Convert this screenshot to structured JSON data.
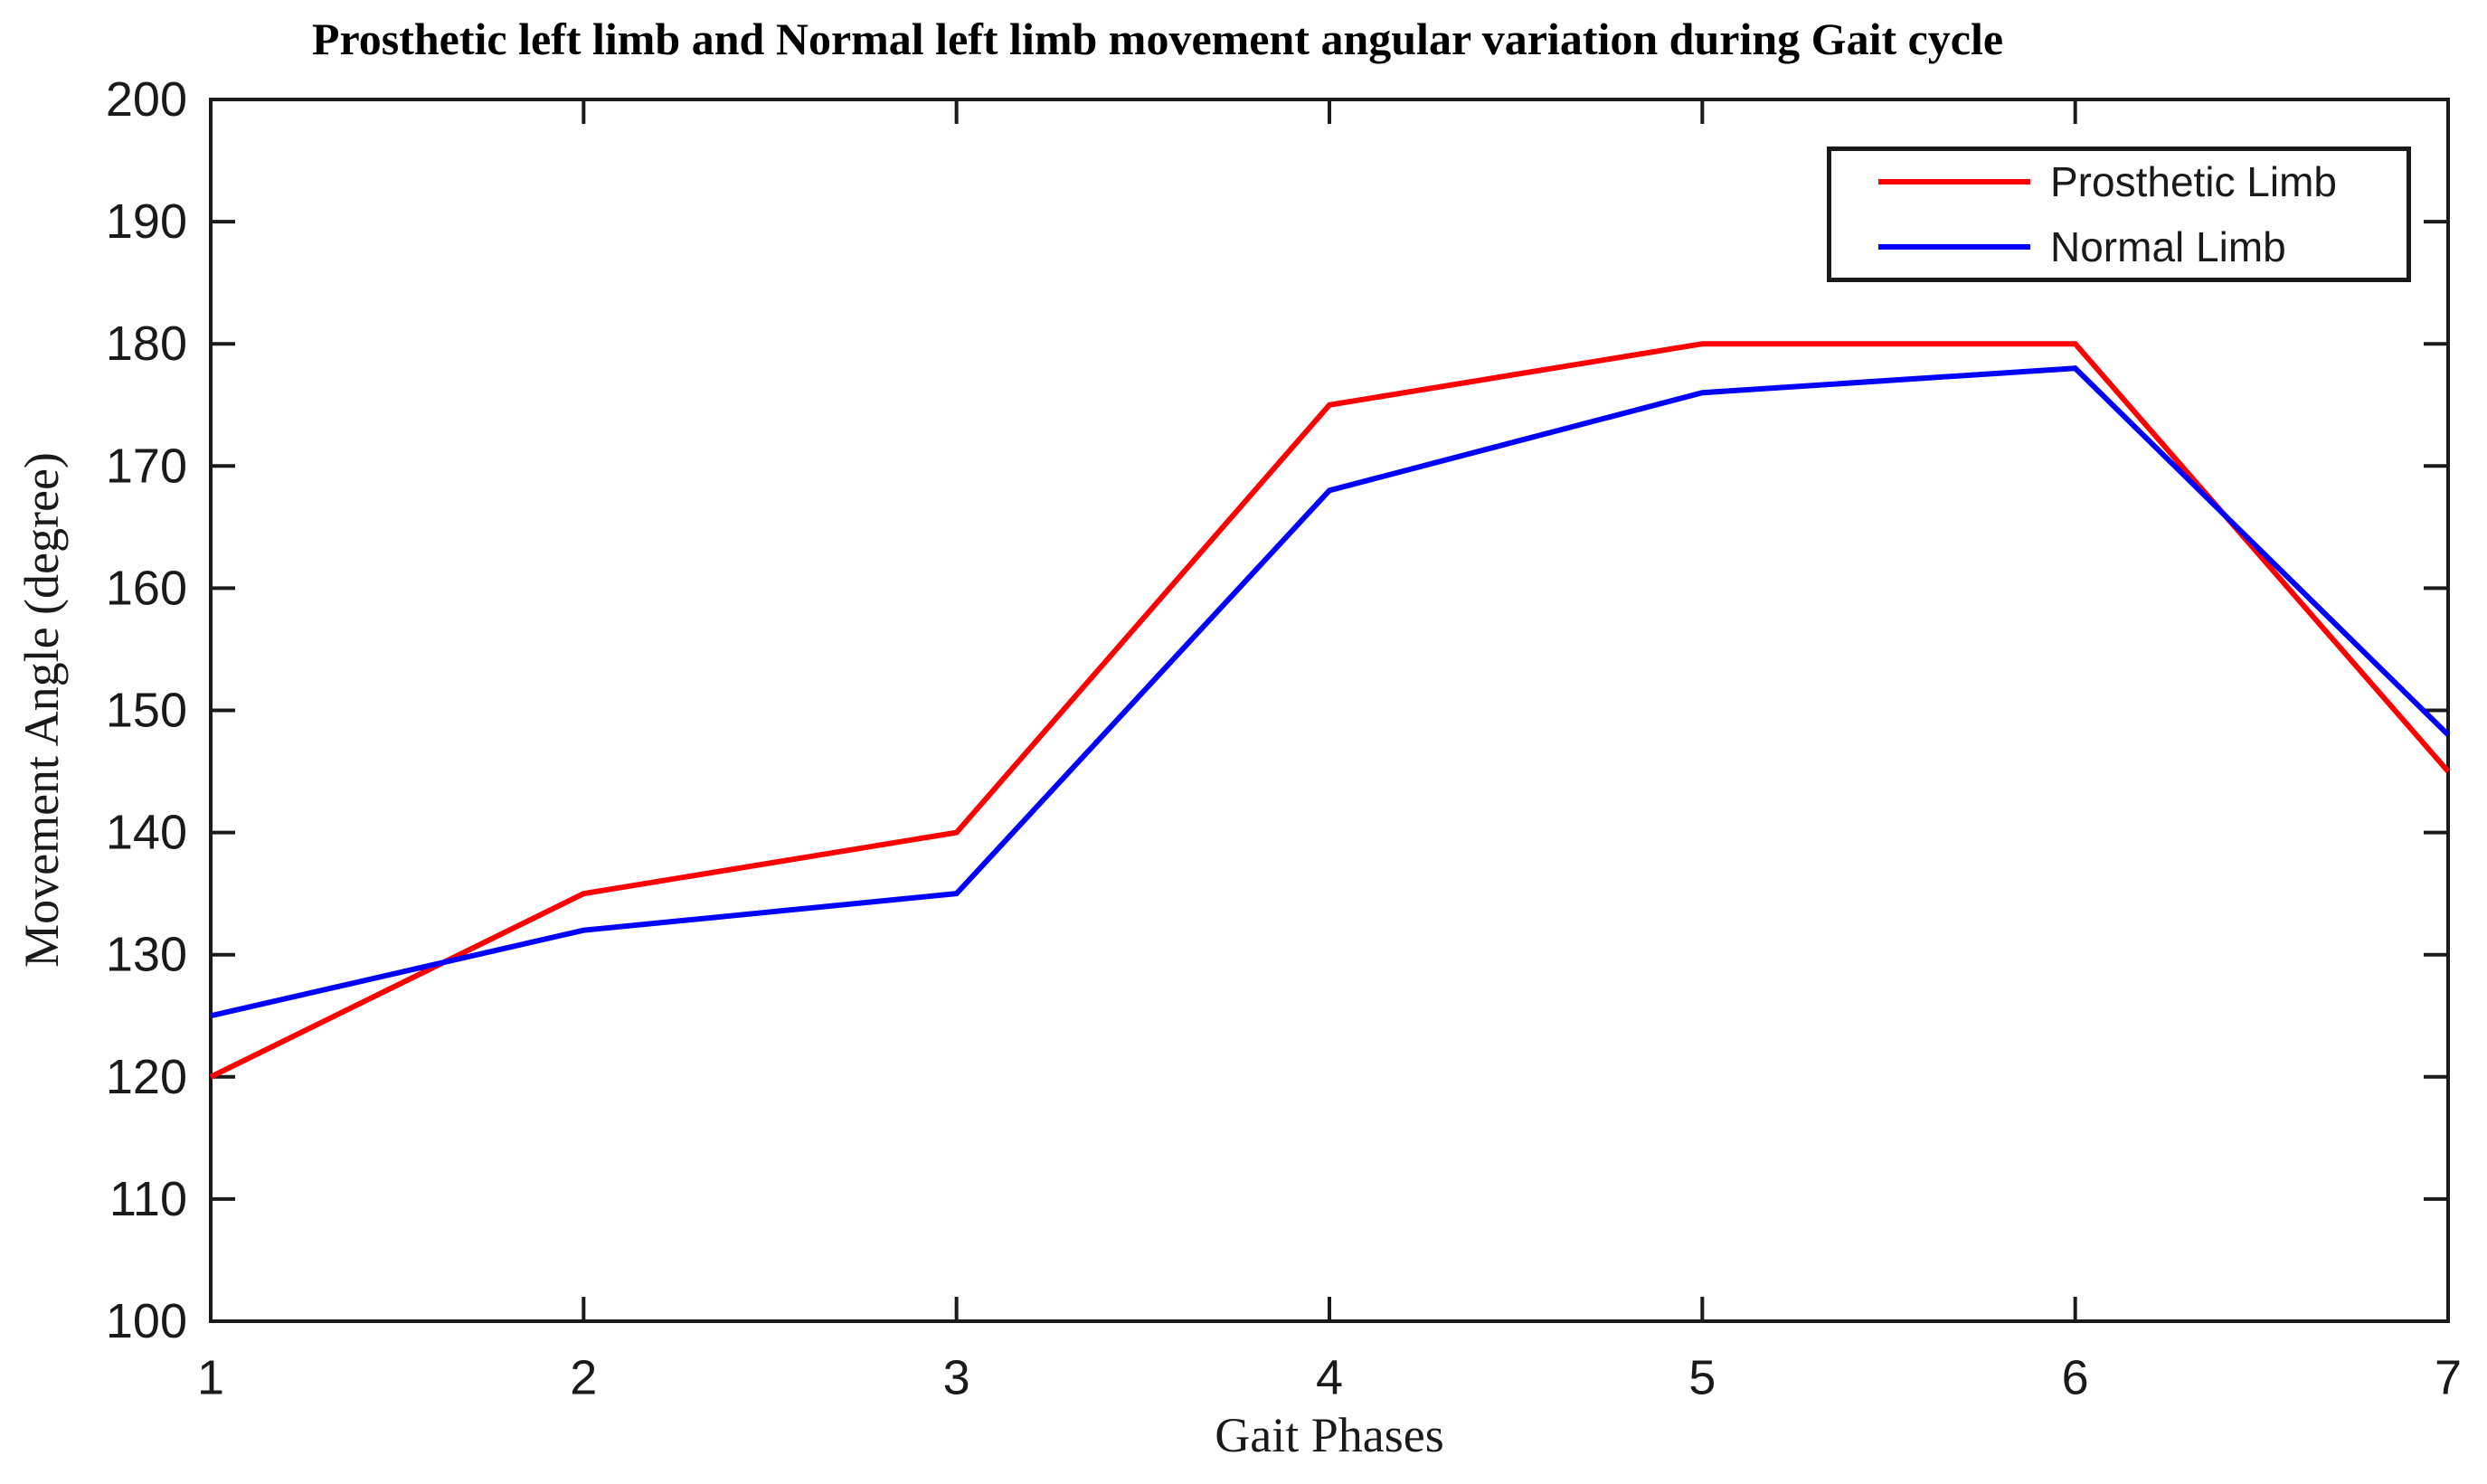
{
  "chart_data": {
    "type": "line",
    "title": "Prosthetic left limb and Normal left limb movement angular variation during Gait cycle",
    "xlabel": "Gait Phases",
    "ylabel": "Movement Angle (degree)",
    "x": [
      1,
      2,
      3,
      4,
      5,
      6,
      7
    ],
    "xlim": [
      1,
      7
    ],
    "ylim": [
      100,
      200
    ],
    "xticks": [
      "1",
      "2",
      "3",
      "4",
      "5",
      "6",
      "7"
    ],
    "yticks": [
      "100",
      "110",
      "120",
      "130",
      "140",
      "150",
      "160",
      "170",
      "180",
      "190",
      "200"
    ],
    "grid": false,
    "legend": {
      "position": "top-right",
      "entries": [
        "Prosthetic Limb",
        "Normal Limb"
      ]
    },
    "series": [
      {
        "name": "Prosthetic Limb",
        "color": "#ff0000",
        "values": [
          120,
          135,
          140,
          175,
          180,
          180,
          145
        ]
      },
      {
        "name": "Normal Limb",
        "color": "#0000ff",
        "values": [
          125,
          132,
          135,
          168,
          176,
          178,
          148
        ]
      }
    ],
    "axis_color": "#1a1a1a",
    "background": "#ffffff"
  }
}
